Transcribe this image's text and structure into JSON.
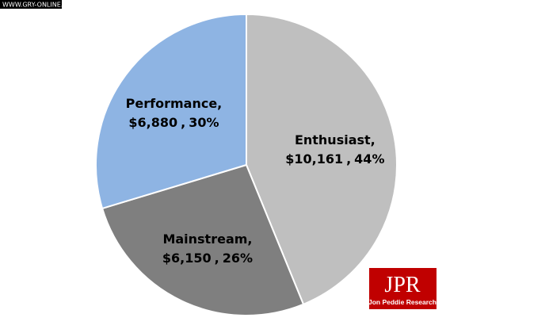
{
  "chart_data": {
    "type": "pie",
    "categories": [
      "Enthusiast,",
      "Mainstream,",
      "Performance,"
    ],
    "values": [
      10161,
      6150,
      6880
    ],
    "value_labels": [
      "$10,161",
      "$6,150",
      "$6,880"
    ],
    "percents": [
      44,
      26,
      30
    ],
    "percent_labels": [
      "44%",
      "26%",
      "30%"
    ],
    "label_separator": ",",
    "colors": [
      "#bfbfbf",
      "#7f7f7f",
      "#8eb4e3"
    ],
    "start_angle": 0,
    "direction": "clockwise"
  },
  "watermark": "WWW.GRY-ONLINE.PL",
  "logo": {
    "title": "JPR",
    "subtitle": "Jon Peddie Research"
  }
}
